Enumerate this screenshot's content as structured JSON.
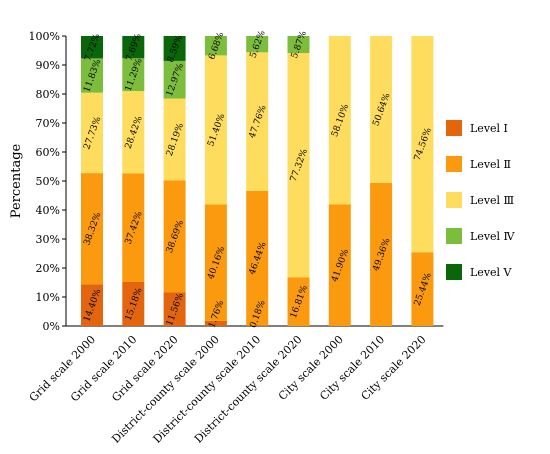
{
  "chart_data": {
    "type": "bar",
    "stacked": true,
    "ylabel": "Percentage",
    "ylim": [
      0,
      100
    ],
    "yticks": [
      "0%",
      "10%",
      "20%",
      "30%",
      "40%",
      "50%",
      "60%",
      "70%",
      "80%",
      "90%",
      "100%"
    ],
    "categories": [
      "Grid scale 2000",
      "Grid scale 2010",
      "Grid scale 2020",
      "District-county scale 2000",
      "District-county scale 2010",
      "District-county scale 2020",
      "City scale 2000",
      "City scale 2010",
      "City scale 2020"
    ],
    "legend_position": "right",
    "series": [
      {
        "name": "Level Ⅰ",
        "color": "#e3650d",
        "values": [
          14.4,
          15.18,
          11.56,
          1.76,
          0.18,
          0,
          0,
          0,
          0
        ],
        "labels": [
          "14.40%",
          "15.18%",
          "11.56%",
          "1.76%",
          "0.18%",
          "",
          "",
          "",
          ""
        ]
      },
      {
        "name": "Level Ⅱ",
        "color": "#fb9a0e",
        "values": [
          38.32,
          37.42,
          38.69,
          40.16,
          46.44,
          16.81,
          41.9,
          49.36,
          25.44
        ],
        "labels": [
          "38.32%",
          "37.42%",
          "38.69%",
          "40.16%",
          "46.44%",
          "16.81%",
          "41.90%",
          "49.36%",
          "25.44%"
        ]
      },
      {
        "name": "Level Ⅲ",
        "color": "#fedc5d",
        "values": [
          27.73,
          28.42,
          28.19,
          51.4,
          47.76,
          77.32,
          58.1,
          50.64,
          74.56
        ],
        "labels": [
          "27.73%",
          "28.42%",
          "28.19%",
          "51.40%",
          "47.76%",
          "77.32%",
          "58.10%",
          "50.64%",
          "74.56%"
        ]
      },
      {
        "name": "Level Ⅳ",
        "color": "#7cbd3e",
        "values": [
          11.83,
          11.29,
          12.97,
          6.68,
          5.62,
          5.87,
          0,
          0,
          0
        ],
        "labels": [
          "11.83%",
          "11.29%",
          "12.97%",
          "6.68%",
          "5.62%",
          "5.87%",
          "",
          "",
          ""
        ]
      },
      {
        "name": "Level Ⅴ",
        "color": "#096609",
        "values": [
          7.72,
          7.69,
          8.59,
          0,
          0,
          0,
          0,
          0,
          0
        ],
        "labels": [
          "7.72%",
          "7.69%",
          "8.59%",
          "",
          "",
          "",
          "",
          "",
          ""
        ]
      }
    ]
  }
}
